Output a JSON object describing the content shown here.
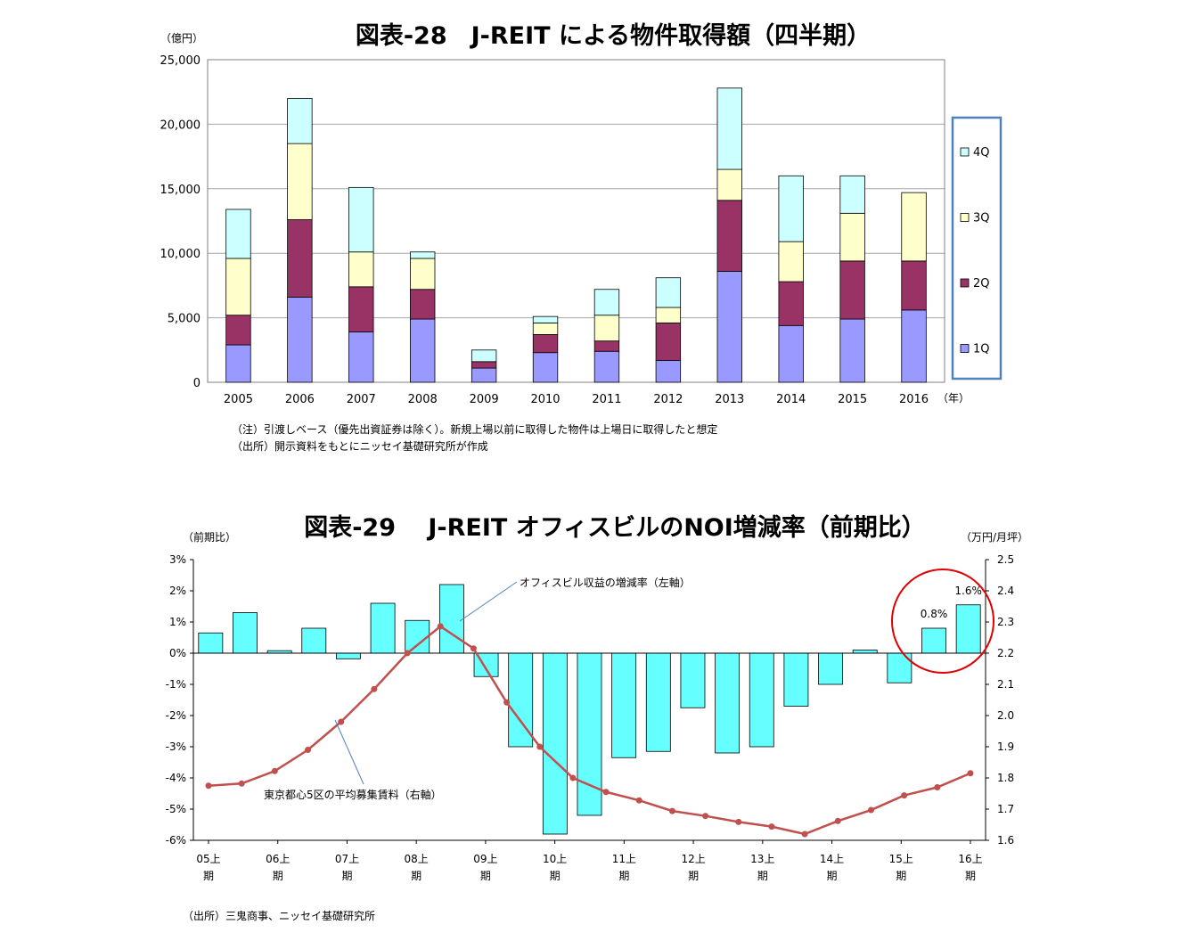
{
  "charts": [
    {
      "type": "bar",
      "stacked": true,
      "title": "図表-28　J-REIT による物件取得額（四半期）",
      "y_unit": "（億円）",
      "x_unit": "（年）",
      "ylim": [
        0,
        25000
      ],
      "yticks": [
        0,
        5000,
        10000,
        15000,
        20000,
        25000
      ],
      "ytick_labels": [
        "0",
        "5,000",
        "10,000",
        "15,000",
        "20,000",
        "25,000"
      ],
      "categories": [
        "2005",
        "2006",
        "2007",
        "2008",
        "2009",
        "2010",
        "2011",
        "2012",
        "2013",
        "2014",
        "2015",
        "2016"
      ],
      "series": [
        {
          "name": "1Q",
          "color": "#9999ff",
          "values": [
            2900,
            6600,
            3900,
            4900,
            1100,
            2300,
            2400,
            1700,
            8600,
            4400,
            4900,
            5600
          ]
        },
        {
          "name": "2Q",
          "color": "#993366",
          "values": [
            2300,
            6000,
            3500,
            2300,
            500,
            1400,
            800,
            2900,
            5500,
            3400,
            4500,
            3800
          ]
        },
        {
          "name": "3Q",
          "color": "#ffffcc",
          "values": [
            4400,
            5900,
            2700,
            2400,
            0,
            900,
            2000,
            1200,
            2400,
            3100,
            3700,
            5300
          ]
        },
        {
          "name": "4Q",
          "color": "#ccffff",
          "values": [
            3800,
            3500,
            5000,
            500,
            900,
            500,
            2000,
            2300,
            6300,
            5100,
            2900,
            0
          ]
        }
      ],
      "legend_position": "right",
      "grid": true,
      "notes": [
        "（注）引渡しベース（優先出資証券は除く）。新規上場以前に取得した物件は上場日に取得したと想定",
        "（出所）開示資料をもとにニッセイ基礎研究所が作成"
      ]
    },
    {
      "type": "bar+line",
      "title": "図表-29　 J-REIT オフィスビルのNOI増減率（前期比）",
      "left_unit": "（前期比）",
      "right_unit": "（万円/月坪）",
      "left_ylim": [
        -6,
        3
      ],
      "left_ytick_labels": [
        "3%",
        "2%",
        "1%",
        "0%",
        "-1%",
        "-2%",
        "-3%",
        "-4%",
        "-5%",
        "-6%"
      ],
      "right_ylim": [
        1.6,
        2.5
      ],
      "right_ytick_labels": [
        "2.5",
        "2.4",
        "2.3",
        "2.2",
        "2.1",
        "2.0",
        "1.9",
        "1.8",
        "1.7",
        "1.6"
      ],
      "x_tick_labels": [
        [
          "05上",
          "期"
        ],
        [
          "06上",
          "期"
        ],
        [
          "07上",
          "期"
        ],
        [
          "08上",
          "期"
        ],
        [
          "09上",
          "期"
        ],
        [
          "10上",
          "期"
        ],
        [
          "11上",
          "期"
        ],
        [
          "12上",
          "期"
        ],
        [
          "13上",
          "期"
        ],
        [
          "14上",
          "期"
        ],
        [
          "15上",
          "期"
        ],
        [
          "16上",
          "期"
        ]
      ],
      "bars": {
        "name": "オフィスビル収益の増減率（左軸）",
        "color": "#66ffff",
        "values": [
          0.65,
          1.3,
          0.08,
          0.8,
          -0.18,
          1.6,
          1.05,
          2.2,
          -0.75,
          -3.0,
          -5.8,
          -5.2,
          -3.35,
          -3.15,
          -1.75,
          -3.2,
          -3.0,
          -1.7,
          -1.0,
          0.1,
          -0.95,
          0.8,
          1.55
        ]
      },
      "line": {
        "name": "東京都心5区の平均募集賃料（右軸）",
        "color": "#c0504d",
        "values": [
          1.775,
          1.782,
          1.822,
          1.89,
          1.98,
          2.085,
          2.2,
          2.286,
          2.215,
          2.042,
          1.9,
          1.8,
          1.755,
          1.728,
          1.694,
          1.678,
          1.659,
          1.644,
          1.62,
          1.662,
          1.697,
          1.744,
          1.77,
          1.815
        ]
      },
      "data_labels": [
        {
          "index": 21,
          "text": "0.8%"
        },
        {
          "index": 22,
          "text": "1.6%"
        }
      ],
      "annotations": {
        "bar_label": "オフィスビル収益の増減率（左軸）",
        "line_label": "東京都心5区の平均募集賃料（右軸）"
      },
      "source": "（出所）三鬼商事、ニッセイ基礎研究所"
    }
  ]
}
